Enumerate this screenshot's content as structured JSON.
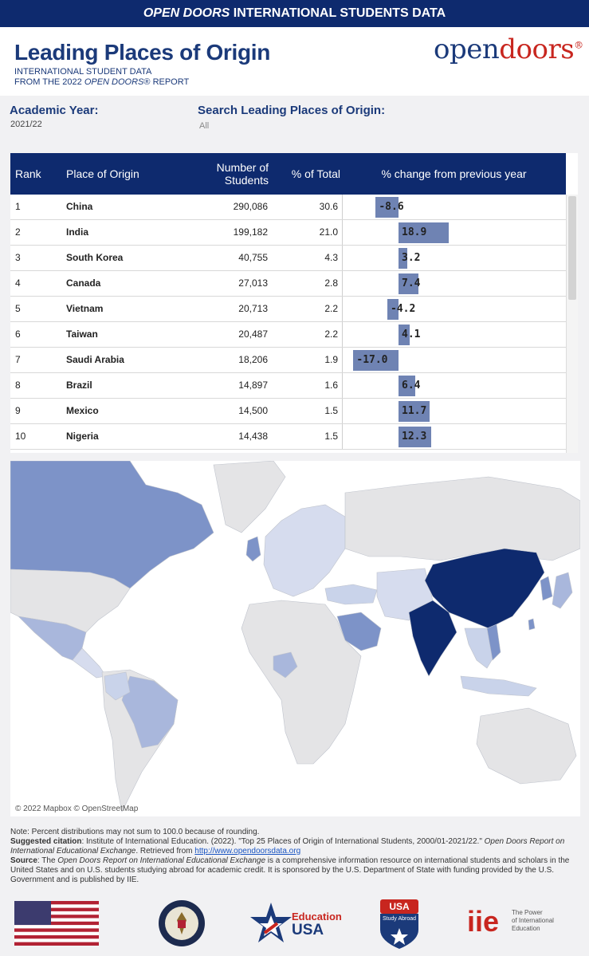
{
  "topbar": {
    "em": "OPEN DOORS",
    "rest": " INTERNATIONAL STUDENTS DATA"
  },
  "header": {
    "title": "Leading Places of Origin",
    "subtitle1": "INTERNATIONAL STUDENT DATA",
    "subtitle2_pre": "FROM THE 2022 ",
    "subtitle2_em": "OPEN DOORS",
    "subtitle2_post": "® REPORT",
    "logo_open": "open",
    "logo_doors": "doors",
    "logo_reg": "®"
  },
  "filters": {
    "year_label": "Academic Year:",
    "year_value": "2021/22",
    "search_label": "Search Leading Places of Origin:",
    "search_value": "All"
  },
  "table": {
    "headers": {
      "rank": "Rank",
      "place": "Place of Origin",
      "num1": "Number of",
      "num2": "Students",
      "pct": "% of Total",
      "chg": "% change from previous year"
    },
    "rows": [
      {
        "rank": "1",
        "place": "China",
        "students": "290,086",
        "pct": "30.6",
        "change": "-8.6",
        "change_value": -8.6
      },
      {
        "rank": "2",
        "place": "India",
        "students": "199,182",
        "pct": "21.0",
        "change": "18.9",
        "change_value": 18.9
      },
      {
        "rank": "3",
        "place": "South Korea",
        "students": "40,755",
        "pct": "4.3",
        "change": "3.2",
        "change_value": 3.2
      },
      {
        "rank": "4",
        "place": "Canada",
        "students": "27,013",
        "pct": "2.8",
        "change": "7.4",
        "change_value": 7.4
      },
      {
        "rank": "5",
        "place": "Vietnam",
        "students": "20,713",
        "pct": "2.2",
        "change": "-4.2",
        "change_value": -4.2
      },
      {
        "rank": "6",
        "place": "Taiwan",
        "students": "20,487",
        "pct": "2.2",
        "change": "4.1",
        "change_value": 4.1
      },
      {
        "rank": "7",
        "place": "Saudi Arabia",
        "students": "18,206",
        "pct": "1.9",
        "change": "-17.0",
        "change_value": -17.0
      },
      {
        "rank": "8",
        "place": "Brazil",
        "students": "14,897",
        "pct": "1.6",
        "change": "6.4",
        "change_value": 6.4
      },
      {
        "rank": "9",
        "place": "Mexico",
        "students": "14,500",
        "pct": "1.5",
        "change": "11.7",
        "change_value": 11.7
      },
      {
        "rank": "10",
        "place": "Nigeria",
        "students": "14,438",
        "pct": "1.5",
        "change": "12.3",
        "change_value": 12.3
      }
    ],
    "change_range": [
      -20,
      20
    ]
  },
  "map": {
    "credit": "© 2022 Mapbox © OpenStreetMap",
    "colors": {
      "ocean": "#ffffff",
      "land": "#e4e4e6",
      "light": "#c9d3ea",
      "mid": "#7d93c8",
      "dark": "#0e2a6e"
    }
  },
  "notes": {
    "note": "Note: Percent distributions may not sum to 100.0 because of rounding.",
    "citation_label": "Suggested citation",
    "citation_text": ": Institute of International Education. (2022). \"Top 25 Places of Origin of International Students, 2000/01-2021/22.\" ",
    "citation_em": "Open Doors Report on International Educational Exchange",
    "citation_post": ". Retrieved from ",
    "citation_link": "http://www.opendoorsdata.org",
    "source_label": "Source",
    "source_pre": ": The ",
    "source_em": "Open Doors Report on International Educational Exchange",
    "source_post": " is a comprehensive information resource on international students and scholars in the United States and on U.S. students studying abroad for academic credit. It is sponsored by the U.S. Department of State with funding provided by the U.S. Government and is published by IIE."
  },
  "logos": {
    "edu_line1": "Education",
    "edu_line2": "USA",
    "study_line1": "USA",
    "study_line2": "Study Abroad",
    "iie_mark": "iie",
    "iie_tag1": "The Power",
    "iie_tag2": "of International",
    "iie_tag3": "Education",
    "icons": [
      "us-flag-icon",
      "state-department-seal-icon",
      "educationusa-star-icon",
      "study-abroad-shield-icon",
      "iie-logo-icon"
    ]
  }
}
